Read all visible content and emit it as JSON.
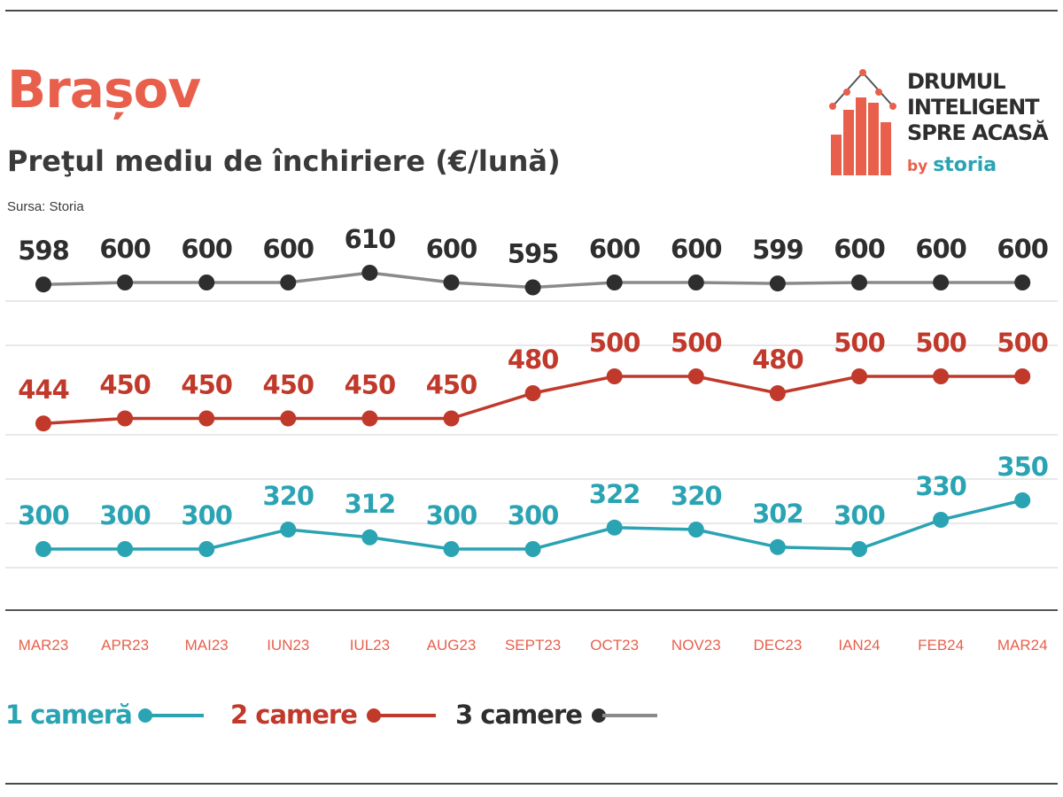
{
  "header": {
    "title": "Brașov",
    "subtitle": "Preţul mediu de închiriere (€/lună)",
    "source": "Sursa: Storia"
  },
  "brand": {
    "line1": "DRUMUL",
    "line2": "INTELIGENT",
    "line3": "SPRE ACASĂ",
    "by": "by",
    "storia": "storia"
  },
  "colors": {
    "title": "#e8604c",
    "subtitle": "#3a3a3a",
    "teal": "#2aa3b3",
    "red": "#c0392b",
    "dark": "#2e2e2e",
    "grey_line": "#8a8a8a",
    "tick": "#e8604c",
    "grid": "#d9d9d9",
    "brand_bar": "#e8604c",
    "storia_teal": "#2aa3b3"
  },
  "chart_data": {
    "type": "line",
    "title": "Brașov",
    "subtitle": "Preţul mediu de închiriere (€/lună)",
    "source": "Sursa: Storia",
    "categories": [
      "MAR23",
      "APR23",
      "MAI23",
      "IUN23",
      "IUL23",
      "AUG23",
      "SEPT23",
      "OCT23",
      "NOV23",
      "DEC23",
      "IAN24",
      "FEB24",
      "MAR24"
    ],
    "series": [
      {
        "name": "3 camere",
        "values": [
          598,
          600,
          600,
          600,
          610,
          600,
          595,
          600,
          600,
          599,
          600,
          600,
          600
        ],
        "color": "#2e2e2e",
        "line_color": "#8a8a8a"
      },
      {
        "name": "2 camere",
        "values": [
          444,
          450,
          450,
          450,
          450,
          450,
          480,
          500,
          500,
          480,
          500,
          500,
          500
        ],
        "color": "#c0392b",
        "line_color": "#c0392b"
      },
      {
        "name": "1 cameră",
        "values": [
          300,
          300,
          300,
          320,
          312,
          300,
          300,
          322,
          320,
          302,
          300,
          330,
          350
        ],
        "color": "#2aa3b3",
        "line_color": "#2aa3b3"
      }
    ],
    "legend": [
      "1 cameră",
      "2 camere",
      "3 camere"
    ],
    "legend_position": "bottom-left",
    "grid": true,
    "data_labels": true
  }
}
